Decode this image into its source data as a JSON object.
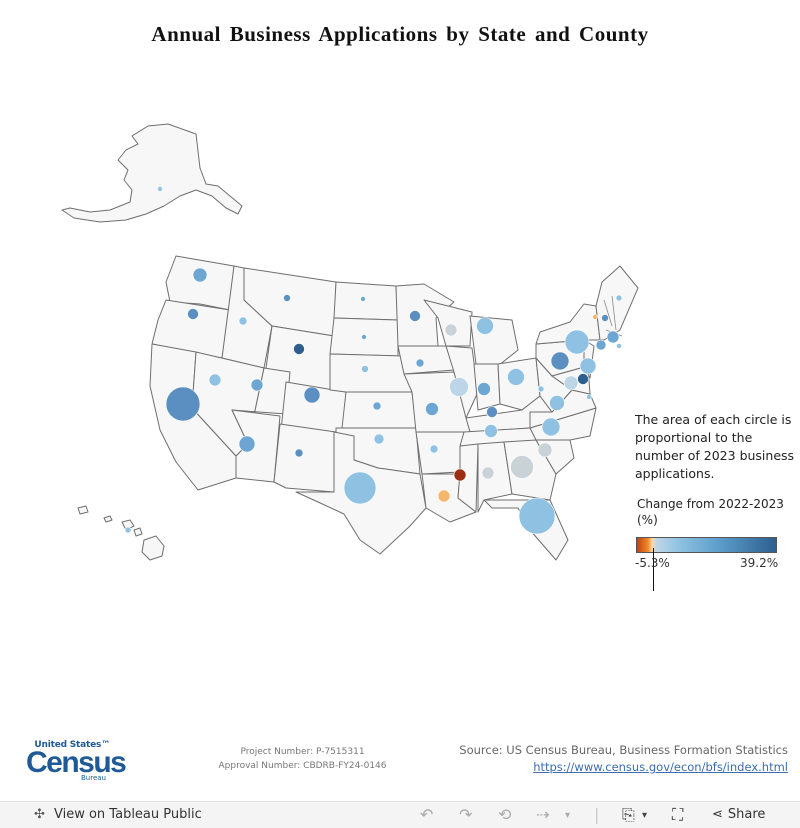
{
  "title": "Annual Business Applications by State and County",
  "legend": {
    "note": "The area of each circle is proportional to the number of 2023 business applications.",
    "color_title": "Change from 2022-2023 (%)",
    "min_label": "-5.3%",
    "max_label": "39.2%",
    "gradient_colors": [
      "#c2410c",
      "#f08c2e",
      "#bfd6e6",
      "#8fc2e2",
      "#5b9cc9",
      "#2d5f8f"
    ]
  },
  "footer": {
    "logo": {
      "top": "United States™",
      "word": "Census",
      "bottom": "Bureau"
    },
    "project_number": "Project Number: P-7515311",
    "approval_number": "Approval Number: CBDRB-FY24-0146",
    "source": "Source: US Census Bureau, Business Formation Statistics",
    "link": "https://www.census.gov/econ/bfs/index.html"
  },
  "toolbar": {
    "view_label": "View on Tableau Public",
    "share_label": "Share",
    "icons": [
      "tableau-icon",
      "undo-icon",
      "redo-icon",
      "revert-icon",
      "refresh-icon",
      "download-icon",
      "fullscreen-icon",
      "share-icon"
    ]
  },
  "circle_colors": {
    "strong_dark": "#2d5f8f",
    "mid_dark": "#5b8fc2",
    "mid": "#6ea6d3",
    "light": "#8fc2e2",
    "pale": "#bcd6e8",
    "grey": "#c9d2d6",
    "orange": "#f5b66b",
    "red": "#9b2d12"
  }
}
